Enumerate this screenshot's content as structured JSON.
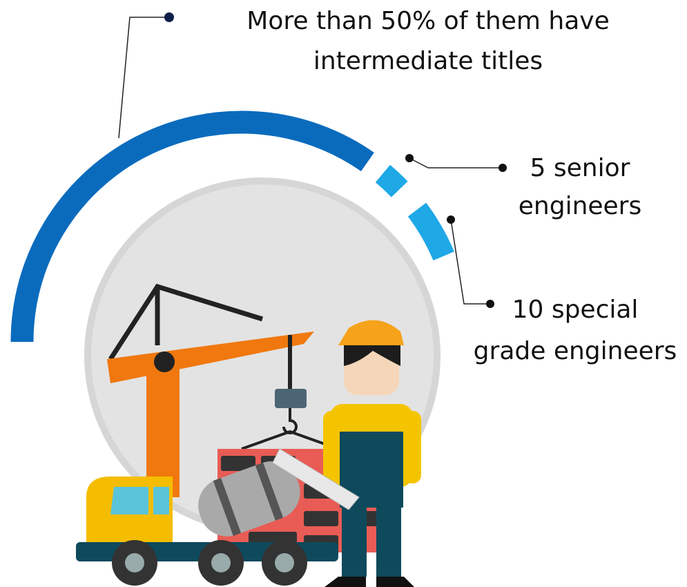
{
  "callouts": [
    {
      "lines": [
        "More than 50% of them have",
        "intermediate titles"
      ]
    },
    {
      "lines": [
        "5 senior",
        "engineers"
      ]
    },
    {
      "lines": [
        "10 special",
        "grade engineers"
      ]
    }
  ]
}
